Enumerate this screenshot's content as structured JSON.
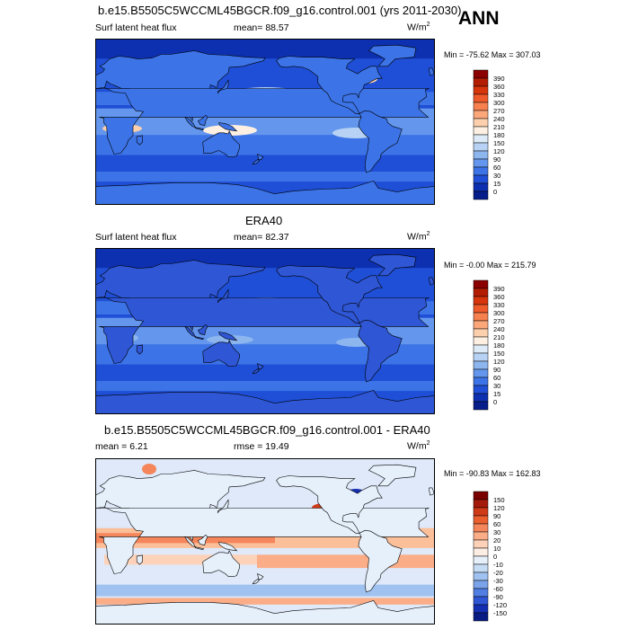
{
  "season": "ANN",
  "panels": [
    {
      "title": "b.e15.B5505C5WCCML45BGCR.f09_g16.control.001 (yrs 2011-2030)",
      "left_label": "Surf latent heat flux",
      "mid_label": "mean=  88.57",
      "units": "W/m",
      "units_sup": "2",
      "minmax": "Min = -75.62 Max = 307.03",
      "colorbar": {
        "labels": [
          "390",
          "360",
          "330",
          "300",
          "270",
          "240",
          "210",
          "180",
          "150",
          "120",
          "90",
          "60",
          "30",
          "15",
          "0"
        ],
        "colors": [
          "#8b0000",
          "#b31e02",
          "#d7350c",
          "#ef5a2b",
          "#f7804f",
          "#fba77a",
          "#fdd0ad",
          "#fdf0e2",
          "#ddebf8",
          "#b7d2f4",
          "#8db6ef",
          "#6396ec",
          "#3c73e6",
          "#1f4fd6",
          "#0d30b0",
          "#061d8a"
        ]
      }
    },
    {
      "title": "ERA40",
      "left_label": "Surf latent heat flux",
      "mid_label": "mean=  82.37",
      "units": "W/m",
      "units_sup": "2",
      "minmax": "Min =  -0.00 Max = 215.79",
      "colorbar": {
        "labels": [
          "390",
          "360",
          "330",
          "300",
          "270",
          "240",
          "210",
          "180",
          "150",
          "120",
          "90",
          "60",
          "30",
          "15",
          "0"
        ],
        "colors": [
          "#8b0000",
          "#b31e02",
          "#d7350c",
          "#ef5a2b",
          "#f7804f",
          "#fba77a",
          "#fdd0ad",
          "#fdf0e2",
          "#ddebf8",
          "#b7d2f4",
          "#8db6ef",
          "#6396ec",
          "#3c73e6",
          "#1f4fd6",
          "#0d30b0",
          "#061d8a"
        ]
      }
    },
    {
      "title": "b.e15.B5505C5WCCML45BGCR.f09_g16.control.001 - ERA40",
      "left_label": "mean =   6.21",
      "mid_label": "rmse =  19.49",
      "units": "W/m",
      "units_sup": "2",
      "minmax": "Min = -90.83 Max = 162.83",
      "colorbar": {
        "labels": [
          "150",
          "120",
          "90",
          "60",
          "30",
          "20",
          "10",
          "0",
          "-10",
          "-20",
          "-30",
          "-60",
          "-90",
          "-120",
          "-150"
        ],
        "colors": [
          "#7a0000",
          "#a51b0b",
          "#cf3a17",
          "#eb5e2e",
          "#f5855a",
          "#fbad88",
          "#fdd2b8",
          "#fdeee4",
          "#e6f0fb",
          "#c5dcf5",
          "#9fc2f0",
          "#7aa3ea",
          "#517ee3",
          "#2f56d4",
          "#152fb3",
          "#071b82"
        ]
      }
    }
  ],
  "chart_data": [
    {
      "type": "heatmap",
      "title": "b.e15.B5505C5WCCML45BGCR.f09_g16.control.001 (yrs 2011-2030)",
      "subtitle": "Surf latent heat flux",
      "units": "W/m2",
      "mean": 88.57,
      "min": -75.62,
      "max": 307.03,
      "season": "ANN",
      "levels": [
        0,
        15,
        30,
        60,
        90,
        120,
        150,
        180,
        210,
        240,
        270,
        300,
        330,
        360,
        390
      ]
    },
    {
      "type": "heatmap",
      "title": "ERA40",
      "subtitle": "Surf latent heat flux",
      "units": "W/m2",
      "mean": 82.37,
      "min": -0.0,
      "max": 215.79,
      "levels": [
        0,
        15,
        30,
        60,
        90,
        120,
        150,
        180,
        210,
        240,
        270,
        300,
        330,
        360,
        390
      ]
    },
    {
      "type": "heatmap",
      "title": "b.e15.B5505C5WCCML45BGCR.f09_g16.control.001 - ERA40",
      "units": "W/m2",
      "mean": 6.21,
      "rmse": 19.49,
      "min": -90.83,
      "max": 162.83,
      "levels": [
        -150,
        -120,
        -90,
        -60,
        -30,
        -20,
        -10,
        0,
        10,
        20,
        30,
        60,
        90,
        120,
        150
      ]
    }
  ]
}
